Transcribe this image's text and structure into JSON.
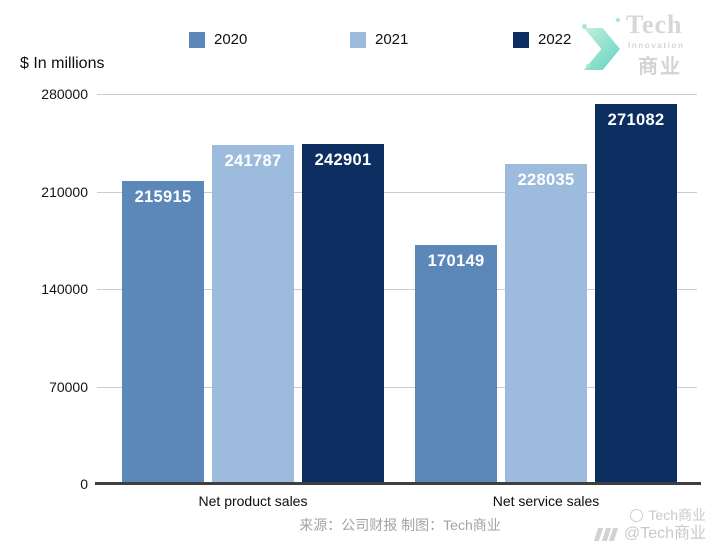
{
  "chart_data": {
    "type": "bar",
    "title": "",
    "ylabel": "$ In millions",
    "xlabel": "",
    "categories": [
      "Net product sales",
      "Net service sales"
    ],
    "series": [
      {
        "name": "2020",
        "color": "#5b87b9",
        "values": [
          215915,
          170149
        ]
      },
      {
        "name": "2021",
        "color": "#9cbbdd",
        "values": [
          241787,
          228035
        ]
      },
      {
        "name": "2022",
        "color": "#0d2e60",
        "values": [
          242901,
          271082
        ]
      }
    ],
    "ylim": [
      0,
      280000
    ],
    "yticks": [
      0,
      70000,
      140000,
      210000,
      280000
    ],
    "grid": true,
    "legend_position": "top",
    "data_labels": true
  },
  "footer": {
    "source": "来源：公司财报 制图：Tech商业"
  },
  "logo": {
    "line1": "Tech",
    "line2": "Innovation",
    "line3": "商业",
    "chevron_color": "#5ecfc4"
  },
  "watermark": {
    "line1": "Tech商业",
    "line2": "@Tech商业"
  },
  "colors": {
    "gridline": "#cccccc",
    "axis": "#3f3f3f",
    "data_label": "#ffffff"
  }
}
